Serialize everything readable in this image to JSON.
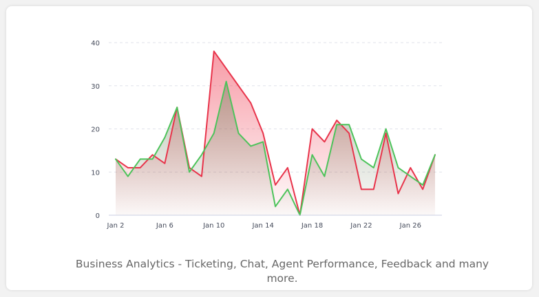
{
  "caption": "Business Analytics - Ticketing, Chat, Agent Performance, Feedback and many more.",
  "chart_data": {
    "type": "area",
    "title": "",
    "xlabel": "",
    "ylabel": "",
    "ylim": [
      0,
      40
    ],
    "yticks": [
      0,
      10,
      20,
      30,
      40
    ],
    "grid": true,
    "x": [
      "Jan 2",
      "Jan 3",
      "Jan 4",
      "Jan 5",
      "Jan 6",
      "Jan 7",
      "Jan 8",
      "Jan 9",
      "Jan 10",
      "Jan 11",
      "Jan 12",
      "Jan 13",
      "Jan 14",
      "Jan 15",
      "Jan 16",
      "Jan 17",
      "Jan 18",
      "Jan 19",
      "Jan 20",
      "Jan 21",
      "Jan 22",
      "Jan 23",
      "Jan 24",
      "Jan 25",
      "Jan 26",
      "Jan 27",
      "Jan 28"
    ],
    "xticks": [
      "Jan 2",
      "Jan 6",
      "Jan 10",
      "Jan 14",
      "Jan 18",
      "Jan 22",
      "Jan 26"
    ],
    "series": [
      {
        "color": "#e8334a",
        "values": [
          13,
          11,
          11,
          14,
          12,
          25,
          11,
          9,
          38,
          34,
          30,
          26,
          19,
          7,
          11,
          0,
          20,
          17,
          22,
          19,
          6,
          6,
          19,
          5,
          11,
          6,
          14
        ]
      },
      {
        "color": "#4cc35a",
        "values": [
          13,
          9,
          13,
          13,
          18,
          25,
          10,
          14,
          19,
          31,
          19,
          16,
          17,
          2,
          6,
          0,
          14,
          9,
          21,
          21,
          13,
          11,
          20,
          11,
          9,
          7,
          14
        ]
      }
    ]
  }
}
